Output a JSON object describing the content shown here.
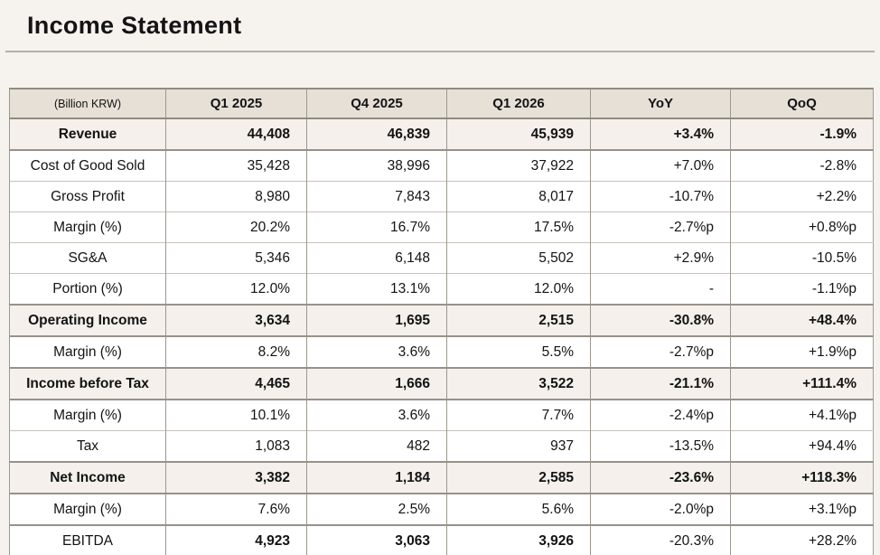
{
  "page": {
    "title": "Income Statement"
  },
  "colors": {
    "page_background": "#f6f2ee",
    "header_background": "#e7e0d7",
    "highlight_row_background": "#f5f0eb",
    "dark_border": "#8f8b84",
    "light_border": "#c7c2bb",
    "text": "#131313"
  },
  "table": {
    "unit_label": "(Billion KRW)",
    "columns": [
      "Q1 2025",
      "Q4 2025",
      "Q1 2026",
      "YoY",
      "QoQ"
    ],
    "rows": [
      {
        "label": "Revenue",
        "values": [
          "44,408",
          "46,839",
          "45,939",
          "+3.4%",
          "-1.9%"
        ],
        "highlight": true,
        "strong": true,
        "bold_label": true,
        "bold_values": true,
        "bold_deltas": true
      },
      {
        "label": "Cost of Good Sold",
        "values": [
          "35,428",
          "38,996",
          "37,922",
          "+7.0%",
          "-2.8%"
        ],
        "highlight": false,
        "strong": false,
        "bold_label": false,
        "bold_values": false,
        "bold_deltas": false
      },
      {
        "label": "Gross Profit",
        "values": [
          "8,980",
          "7,843",
          "8,017",
          "-10.7%",
          "+2.2%"
        ],
        "highlight": false,
        "strong": false,
        "bold_label": false,
        "bold_values": false,
        "bold_deltas": false
      },
      {
        "label": "Margin (%)",
        "values": [
          "20.2%",
          "16.7%",
          "17.5%",
          "-2.7%p",
          "+0.8%p"
        ],
        "highlight": false,
        "strong": false,
        "bold_label": false,
        "bold_values": false,
        "bold_deltas": false
      },
      {
        "label": "SG&A",
        "values": [
          "5,346",
          "6,148",
          "5,502",
          "+2.9%",
          "-10.5%"
        ],
        "highlight": false,
        "strong": false,
        "bold_label": false,
        "bold_values": false,
        "bold_deltas": false
      },
      {
        "label": "Portion (%)",
        "values": [
          "12.0%",
          "13.1%",
          "12.0%",
          "-",
          "-1.1%p"
        ],
        "highlight": false,
        "strong": false,
        "bold_label": false,
        "bold_values": false,
        "bold_deltas": false
      },
      {
        "label": "Operating Income",
        "values": [
          "3,634",
          "1,695",
          "2,515",
          "-30.8%",
          "+48.4%"
        ],
        "highlight": true,
        "strong": true,
        "bold_label": true,
        "bold_values": true,
        "bold_deltas": true
      },
      {
        "label": "Margin (%)",
        "values": [
          "8.2%",
          "3.6%",
          "5.5%",
          "-2.7%p",
          "+1.9%p"
        ],
        "highlight": false,
        "strong": false,
        "bold_label": false,
        "bold_values": false,
        "bold_deltas": false
      },
      {
        "label": "Income before Tax",
        "values": [
          "4,465",
          "1,666",
          "3,522",
          "-21.1%",
          "+111.4%"
        ],
        "highlight": true,
        "strong": true,
        "bold_label": true,
        "bold_values": true,
        "bold_deltas": true
      },
      {
        "label": "Margin (%)",
        "values": [
          "10.1%",
          "3.6%",
          "7.7%",
          "-2.4%p",
          "+4.1%p"
        ],
        "highlight": false,
        "strong": false,
        "bold_label": false,
        "bold_values": false,
        "bold_deltas": false
      },
      {
        "label": "Tax",
        "values": [
          "1,083",
          "482",
          "937",
          "-13.5%",
          "+94.4%"
        ],
        "highlight": false,
        "strong": false,
        "bold_label": false,
        "bold_values": false,
        "bold_deltas": false
      },
      {
        "label": "Net Income",
        "values": [
          "3,382",
          "1,184",
          "2,585",
          "-23.6%",
          "+118.3%"
        ],
        "highlight": true,
        "strong": true,
        "bold_label": true,
        "bold_values": true,
        "bold_deltas": true
      },
      {
        "label": "Margin (%)",
        "values": [
          "7.6%",
          "2.5%",
          "5.6%",
          "-2.0%p",
          "+3.1%p"
        ],
        "highlight": false,
        "strong": false,
        "bold_label": false,
        "bold_values": false,
        "bold_deltas": false
      },
      {
        "label": "EBITDA",
        "values": [
          "4,923",
          "3,063",
          "3,926",
          "-20.3%",
          "+28.2%"
        ],
        "highlight": false,
        "strong": true,
        "bold_label": false,
        "bold_values": true,
        "bold_deltas": false
      }
    ]
  }
}
